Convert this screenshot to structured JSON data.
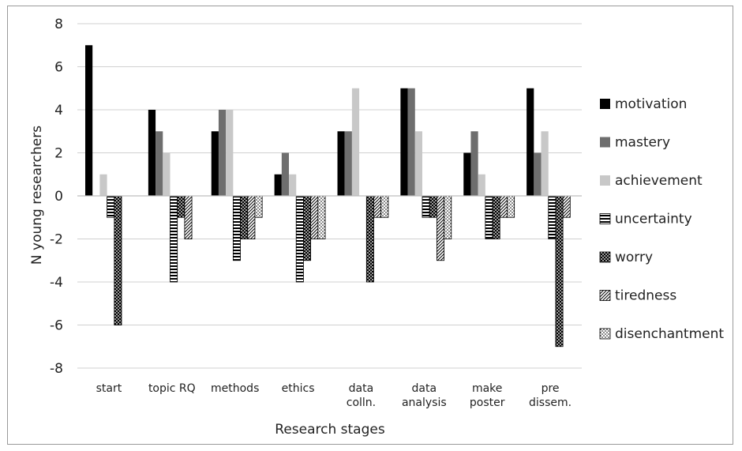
{
  "chart_data": {
    "type": "bar",
    "xlabel": "Research stages",
    "ylabel": "N young researchers",
    "ylim": [
      -8,
      8
    ],
    "yticks": [
      8,
      6,
      4,
      2,
      0,
      -2,
      -4,
      -6,
      -8
    ],
    "grid": true,
    "legend_position": "right",
    "categories": [
      [
        "start"
      ],
      [
        "topic RQ"
      ],
      [
        "methods"
      ],
      [
        "ethics"
      ],
      [
        "data",
        "colln."
      ],
      [
        "data",
        "analysis"
      ],
      [
        "make",
        "poster"
      ],
      [
        "pre",
        "dissem."
      ]
    ],
    "series": [
      {
        "name": "motivation",
        "pattern": "solid-black",
        "values": [
          7,
          4,
          3,
          1,
          3,
          5,
          2,
          5
        ]
      },
      {
        "name": "mastery",
        "pattern": "solid-darkgray",
        "values": [
          0,
          3,
          4,
          2,
          3,
          5,
          3,
          2
        ]
      },
      {
        "name": "achievement",
        "pattern": "solid-lightgray",
        "values": [
          1,
          2,
          4,
          1,
          5,
          3,
          1,
          3
        ]
      },
      {
        "name": "uncertainty",
        "pattern": "horizontal-stripes",
        "values": [
          -1,
          -4,
          -3,
          -4,
          0,
          -1,
          -2,
          -2
        ]
      },
      {
        "name": "worry",
        "pattern": "cross-hatch",
        "values": [
          -6,
          -1,
          -2,
          -3,
          -4,
          -1,
          -2,
          -7
        ]
      },
      {
        "name": "tiredness",
        "pattern": "diagonal-stripes",
        "values": [
          0,
          -2,
          -2,
          -2,
          -1,
          -3,
          -1,
          -1
        ]
      },
      {
        "name": "disenchantment",
        "pattern": "dots",
        "values": [
          0,
          0,
          -1,
          -2,
          -1,
          -2,
          -1,
          0
        ]
      }
    ]
  }
}
